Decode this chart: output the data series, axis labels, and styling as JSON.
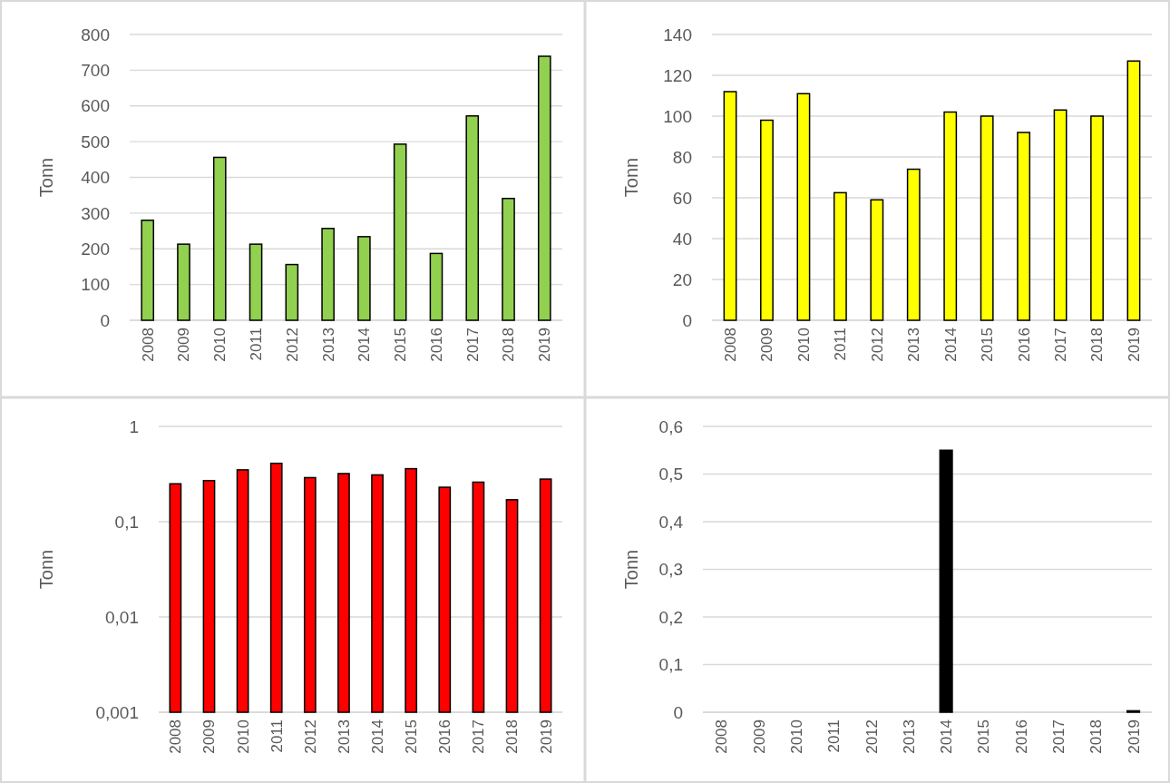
{
  "chart_data": [
    {
      "type": "bar",
      "ylabel": "Tonn",
      "categories": [
        "2008",
        "2009",
        "2010",
        "2011",
        "2012",
        "2013",
        "2014",
        "2015",
        "2016",
        "2017",
        "2018",
        "2019"
      ],
      "values": [
        280,
        213,
        456,
        213,
        156,
        257,
        234,
        493,
        187,
        572,
        341,
        739
      ],
      "color": "#92d050",
      "ylim": [
        0,
        800
      ],
      "yticks": [
        0,
        100,
        200,
        300,
        400,
        500,
        600,
        700,
        800
      ],
      "grid": "y"
    },
    {
      "type": "bar",
      "ylabel": "Tonn",
      "categories": [
        "2008",
        "2009",
        "2010",
        "2011",
        "2012",
        "2013",
        "2014",
        "2015",
        "2016",
        "2017",
        "2018",
        "2019"
      ],
      "values": [
        112,
        98,
        111,
        62.5,
        59,
        74,
        102,
        100,
        92,
        103,
        100,
        127
      ],
      "color": "#ffff00",
      "ylim": [
        0,
        140
      ],
      "yticks": [
        0,
        20,
        40,
        60,
        80,
        100,
        120,
        140
      ],
      "grid": "y"
    },
    {
      "type": "bar",
      "ylabel": "Tonn",
      "categories": [
        "2008",
        "2009",
        "2010",
        "2011",
        "2012",
        "2013",
        "2014",
        "2015",
        "2016",
        "2017",
        "2018",
        "2019"
      ],
      "values": [
        0.25,
        0.27,
        0.35,
        0.41,
        0.29,
        0.32,
        0.31,
        0.36,
        0.23,
        0.26,
        0.17,
        0.28
      ],
      "color": "#ff0000",
      "log": true,
      "ylim": [
        0.001,
        1
      ],
      "yticks": [
        {
          "value": 0.001,
          "label": "0,001"
        },
        {
          "value": 0.01,
          "label": "0,01"
        },
        {
          "value": 0.1,
          "label": "0,1"
        },
        1
      ],
      "grid": "y"
    },
    {
      "type": "bar",
      "ylabel": "Tonn",
      "categories": [
        "2008",
        "2009",
        "2010",
        "2011",
        "2012",
        "2013",
        "2014",
        "2015",
        "2016",
        "2017",
        "2018",
        "2019"
      ],
      "values": [
        0,
        0,
        0,
        0,
        0,
        0,
        0.55,
        0,
        0,
        0,
        0,
        0.003
      ],
      "color": "#000000",
      "ylim": [
        0,
        0.6
      ],
      "yticks": [
        0,
        {
          "value": 0.1,
          "label": "0,1"
        },
        {
          "value": 0.2,
          "label": "0,2"
        },
        {
          "value": 0.3,
          "label": "0,3"
        },
        {
          "value": 0.4,
          "label": "0,4"
        },
        {
          "value": 0.5,
          "label": "0,5"
        },
        {
          "value": 0.6,
          "label": "0,6"
        }
      ],
      "grid": "y"
    }
  ]
}
